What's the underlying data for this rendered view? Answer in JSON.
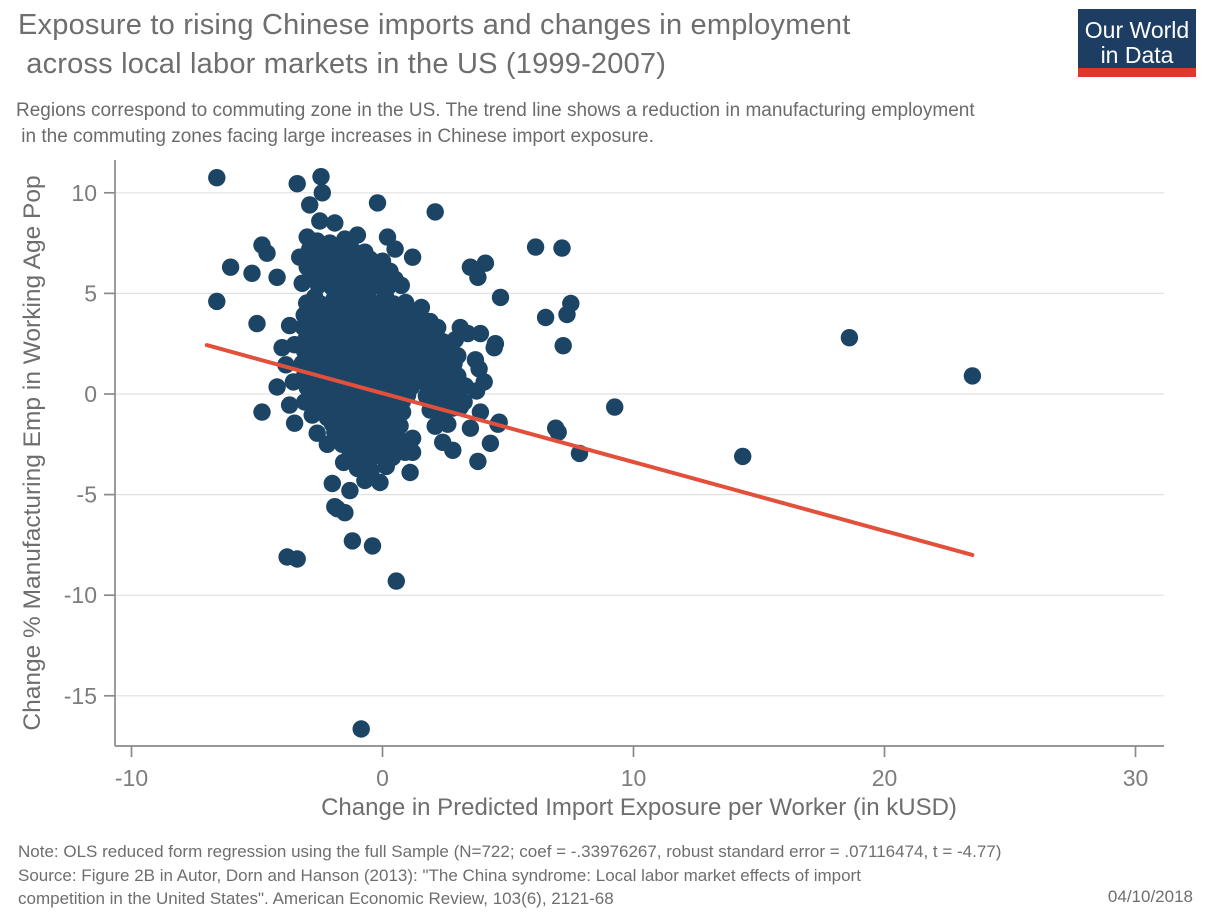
{
  "header": {
    "title_line1": "Exposure to rising Chinese imports and changes in employment",
    "title_line2": " across local labor markets in the US (1999-2007)",
    "subtitle_line1": "Regions correspond to commuting zone in the US. The trend line shows a reduction in manufacturing employment",
    "subtitle_line2": " in the commuting zones facing large increases in Chinese import exposure.",
    "logo": {
      "line1": "Our World",
      "line2": "in Data",
      "bg_color": "#1d3d63",
      "stripe_color": "#e0362b"
    }
  },
  "chart_data": {
    "type": "scatter",
    "title": "Exposure to rising Chinese imports and changes in employment across local labor markets in the US (1999-2007)",
    "xlabel": "Change in Predicted Import Exposure per Worker (in kUSD)",
    "ylabel": "Change % Manufacturing Emp in Working Age Pop",
    "xlim": [
      -10.7,
      31.2
    ],
    "ylim": [
      -17.5,
      11.6
    ],
    "x_ticks": [
      -10,
      0,
      10,
      20,
      30
    ],
    "y_ticks": [
      10,
      5,
      0,
      -5,
      -10,
      -15
    ],
    "grid": "horizontal gridlines at y ticks",
    "point_color": "#1c4465",
    "grid_color": "#e1e1e1",
    "axis_color": "#8a8a8a",
    "tick_label_color": "#7d7d7d",
    "axis_title_color": "#6e6e6e",
    "trend": {
      "color": "#e2503c",
      "slope": -0.33976267,
      "intercept": 0.05,
      "x1": -7.0,
      "y1": 2.43,
      "x2": 23.5,
      "y2": -8.0
    },
    "points": [
      [
        -2.7,
        4.82
      ],
      [
        -1.92,
        4.75
      ],
      [
        -1.2,
        4.9
      ],
      [
        -0.58,
        4.78
      ],
      [
        0.12,
        4.85
      ],
      [
        -3.02,
        4.52
      ],
      [
        -2.42,
        4.45
      ],
      [
        -1.7,
        4.55
      ],
      [
        -1.05,
        4.42
      ],
      [
        -0.33,
        4.5
      ],
      [
        0.44,
        4.48
      ],
      [
        0.92,
        4.55
      ],
      [
        -2.82,
        4.18
      ],
      [
        -2.2,
        4.25
      ],
      [
        -1.52,
        4.12
      ],
      [
        -0.85,
        4.22
      ],
      [
        -0.15,
        4.15
      ],
      [
        0.58,
        4.2
      ],
      [
        1.1,
        4.1
      ],
      [
        -3.12,
        3.92
      ],
      [
        -2.55,
        3.85
      ],
      [
        -1.95,
        3.95
      ],
      [
        -1.35,
        3.88
      ],
      [
        -0.7,
        3.92
      ],
      [
        -0.05,
        3.82
      ],
      [
        0.35,
        3.95
      ],
      [
        0.82,
        3.88
      ],
      [
        -2.9,
        3.62
      ],
      [
        -2.35,
        3.55
      ],
      [
        -1.75,
        3.65
      ],
      [
        -1.15,
        3.58
      ],
      [
        -0.5,
        3.62
      ],
      [
        0.1,
        3.55
      ],
      [
        0.65,
        3.6
      ],
      [
        1.05,
        3.52
      ],
      [
        -3.15,
        3.32
      ],
      [
        -2.6,
        3.25
      ],
      [
        -2.05,
        3.35
      ],
      [
        -1.5,
        3.28
      ],
      [
        -0.9,
        3.32
      ],
      [
        -0.3,
        3.22
      ],
      [
        0.25,
        3.3
      ],
      [
        0.75,
        3.25
      ],
      [
        1.15,
        3.35
      ],
      [
        -2.75,
        3.02
      ],
      [
        -2.2,
        2.95
      ],
      [
        -1.65,
        3.05
      ],
      [
        -1.1,
        2.98
      ],
      [
        -0.55,
        3.02
      ],
      [
        0.0,
        2.92
      ],
      [
        0.5,
        3.0
      ],
      [
        0.95,
        2.95
      ],
      [
        -3.05,
        2.72
      ],
      [
        -2.5,
        2.65
      ],
      [
        -1.9,
        2.75
      ],
      [
        -1.3,
        2.68
      ],
      [
        -0.75,
        2.72
      ],
      [
        -0.2,
        2.62
      ],
      [
        0.3,
        2.7
      ],
      [
        0.85,
        2.65
      ],
      [
        1.22,
        2.75
      ],
      [
        -2.85,
        2.42
      ],
      [
        -2.3,
        2.35
      ],
      [
        -1.7,
        2.45
      ],
      [
        -1.2,
        2.38
      ],
      [
        -0.65,
        2.42
      ],
      [
        -0.1,
        2.32
      ],
      [
        0.4,
        2.4
      ],
      [
        0.9,
        2.35
      ],
      [
        -3.1,
        2.12
      ],
      [
        -2.6,
        2.05
      ],
      [
        -2.0,
        2.15
      ],
      [
        -1.45,
        2.08
      ],
      [
        -0.9,
        2.12
      ],
      [
        -0.4,
        2.02
      ],
      [
        0.15,
        2.1
      ],
      [
        0.7,
        2.05
      ],
      [
        1.15,
        2.15
      ],
      [
        -2.9,
        1.82
      ],
      [
        -2.4,
        1.75
      ],
      [
        -1.8,
        1.85
      ],
      [
        -1.25,
        1.78
      ],
      [
        -0.7,
        1.82
      ],
      [
        -0.15,
        1.72
      ],
      [
        0.35,
        1.8
      ],
      [
        0.85,
        1.75
      ],
      [
        -3.2,
        1.52
      ],
      [
        -2.65,
        1.45
      ],
      [
        -2.1,
        1.55
      ],
      [
        -1.55,
        1.48
      ],
      [
        -1.0,
        1.52
      ],
      [
        -0.45,
        1.42
      ],
      [
        0.05,
        1.5
      ],
      [
        0.55,
        1.45
      ],
      [
        1.05,
        1.55
      ],
      [
        -2.95,
        1.22
      ],
      [
        -2.45,
        1.15
      ],
      [
        -1.85,
        1.25
      ],
      [
        -1.3,
        1.18
      ],
      [
        -0.8,
        1.22
      ],
      [
        -0.25,
        1.12
      ],
      [
        0.25,
        1.2
      ],
      [
        0.75,
        1.15
      ],
      [
        1.2,
        1.25
      ],
      [
        -3.1,
        0.92
      ],
      [
        -2.55,
        0.85
      ],
      [
        -2.0,
        0.95
      ],
      [
        -1.5,
        0.88
      ],
      [
        -0.95,
        0.92
      ],
      [
        -0.4,
        0.82
      ],
      [
        0.1,
        0.9
      ],
      [
        0.6,
        0.85
      ],
      [
        1.1,
        0.95
      ],
      [
        -2.8,
        0.62
      ],
      [
        -2.3,
        0.55
      ],
      [
        -1.75,
        0.65
      ],
      [
        -1.2,
        0.58
      ],
      [
        -0.65,
        0.62
      ],
      [
        -0.1,
        0.52
      ],
      [
        0.4,
        0.6
      ],
      [
        0.9,
        0.55
      ],
      [
        -3.0,
        0.32
      ],
      [
        -2.5,
        0.25
      ],
      [
        -1.95,
        0.35
      ],
      [
        -1.4,
        0.28
      ],
      [
        -0.85,
        0.32
      ],
      [
        -0.3,
        0.22
      ],
      [
        0.2,
        0.3
      ],
      [
        0.7,
        0.25
      ],
      [
        1.15,
        0.35
      ],
      [
        -2.7,
        0.02
      ],
      [
        -2.15,
        -0.05
      ],
      [
        -1.6,
        0.05
      ],
      [
        -1.05,
        -0.02
      ],
      [
        -0.5,
        0.02
      ],
      [
        0.05,
        -0.08
      ],
      [
        0.55,
        0.0
      ],
      [
        1.0,
        -0.05
      ],
      [
        -2.9,
        -0.28
      ],
      [
        -2.35,
        -0.35
      ],
      [
        -1.8,
        -0.25
      ],
      [
        -1.25,
        -0.32
      ],
      [
        -0.7,
        -0.28
      ],
      [
        -0.15,
        -0.38
      ],
      [
        0.35,
        -0.3
      ],
      [
        0.8,
        -0.35
      ],
      [
        -2.6,
        -0.58
      ],
      [
        -2.05,
        -0.65
      ],
      [
        -1.5,
        -0.55
      ],
      [
        -0.95,
        -0.62
      ],
      [
        -0.4,
        -0.58
      ],
      [
        0.15,
        -0.68
      ],
      [
        0.65,
        -0.6
      ],
      [
        -2.4,
        -0.88
      ],
      [
        -1.85,
        -0.95
      ],
      [
        -1.3,
        -0.85
      ],
      [
        -0.75,
        -0.92
      ],
      [
        -0.2,
        -0.88
      ],
      [
        0.3,
        -0.98
      ],
      [
        0.8,
        -0.9
      ],
      [
        -2.2,
        -1.18
      ],
      [
        -1.65,
        -1.25
      ],
      [
        -1.1,
        -1.15
      ],
      [
        -0.55,
        -1.22
      ],
      [
        0.0,
        -1.18
      ],
      [
        0.5,
        -1.28
      ],
      [
        -2.0,
        -1.48
      ],
      [
        -1.45,
        -1.55
      ],
      [
        -0.9,
        -1.45
      ],
      [
        -0.35,
        -1.52
      ],
      [
        0.2,
        -1.48
      ],
      [
        0.7,
        -1.58
      ],
      [
        -2.6,
        7.6
      ],
      [
        -2.1,
        7.5
      ],
      [
        -1.6,
        7.4
      ],
      [
        -2.9,
        7.2
      ],
      [
        -2.3,
        7.1
      ],
      [
        -1.8,
        7.0
      ],
      [
        -1.2,
        7.15
      ],
      [
        -0.7,
        7.05
      ],
      [
        -3.3,
        6.8
      ],
      [
        -2.7,
        6.7
      ],
      [
        -2.15,
        6.6
      ],
      [
        -1.6,
        6.55
      ],
      [
        -1.05,
        6.6
      ],
      [
        -0.5,
        6.7
      ],
      [
        0.0,
        6.6
      ],
      [
        -3.0,
        6.3
      ],
      [
        -2.5,
        6.2
      ],
      [
        -1.95,
        6.1
      ],
      [
        -1.4,
        6.05
      ],
      [
        -0.85,
        6.1
      ],
      [
        -0.3,
        6.2
      ],
      [
        0.3,
        6.1
      ],
      [
        -2.8,
        5.8
      ],
      [
        -2.25,
        5.7
      ],
      [
        -1.7,
        5.65
      ],
      [
        -1.15,
        5.7
      ],
      [
        -0.6,
        5.75
      ],
      [
        -0.05,
        5.65
      ],
      [
        0.5,
        5.7
      ],
      [
        -2.55,
        5.4
      ],
      [
        -2.0,
        5.3
      ],
      [
        -1.45,
        5.25
      ],
      [
        -0.9,
        5.3
      ],
      [
        -0.35,
        5.35
      ],
      [
        0.2,
        5.3
      ],
      [
        0.75,
        5.4
      ],
      [
        -3.2,
        5.5
      ],
      [
        1.5,
        3.9
      ],
      [
        1.9,
        3.6
      ],
      [
        1.45,
        3.2
      ],
      [
        1.8,
        2.9
      ],
      [
        2.2,
        3.3
      ],
      [
        1.55,
        2.5
      ],
      [
        1.95,
        2.2
      ],
      [
        2.4,
        2.6
      ],
      [
        1.5,
        1.9
      ],
      [
        1.85,
        1.55
      ],
      [
        2.3,
        1.8
      ],
      [
        2.7,
        2.1
      ],
      [
        1.6,
        1.2
      ],
      [
        2.0,
        0.9
      ],
      [
        2.45,
        1.25
      ],
      [
        2.85,
        1.5
      ],
      [
        1.7,
        0.55
      ],
      [
        2.1,
        0.3
      ],
      [
        2.55,
        0.6
      ],
      [
        3.0,
        0.9
      ],
      [
        1.75,
        -0.1
      ],
      [
        2.2,
        -0.35
      ],
      [
        2.65,
        0.0
      ],
      [
        3.1,
        0.25
      ],
      [
        1.9,
        -0.8
      ],
      [
        2.35,
        -1.05
      ],
      [
        2.8,
        -0.7
      ],
      [
        3.25,
        -0.4
      ],
      [
        1.55,
        4.3
      ],
      [
        2.6,
        -1.5
      ],
      [
        -1.9,
        -1.9
      ],
      [
        -1.35,
        -2.1
      ],
      [
        -0.8,
        -1.95
      ],
      [
        -0.25,
        -2.05
      ],
      [
        0.3,
        -1.85
      ],
      [
        -1.6,
        -2.5
      ],
      [
        -1.05,
        -2.6
      ],
      [
        -0.5,
        -2.45
      ],
      [
        0.05,
        -2.55
      ],
      [
        0.6,
        -2.4
      ],
      [
        -1.3,
        -3.1
      ],
      [
        -0.75,
        -3.2
      ],
      [
        -0.2,
        -3.05
      ],
      [
        0.4,
        -3.15
      ],
      [
        -1.0,
        -3.7
      ],
      [
        -0.45,
        -3.8
      ],
      [
        0.15,
        -3.6
      ],
      [
        -0.7,
        -4.3
      ],
      [
        -0.1,
        -4.4
      ],
      [
        -1.55,
        -3.4
      ],
      [
        0.9,
        -2.9
      ],
      [
        1.2,
        -2.2
      ],
      [
        -3.7,
        3.4
      ],
      [
        -4.0,
        2.3
      ],
      [
        -3.5,
        2.45
      ],
      [
        -3.85,
        1.45
      ],
      [
        -3.55,
        0.6
      ],
      [
        -6.6,
        10.75
      ],
      [
        -3.4,
        10.45
      ],
      [
        -2.45,
        10.8
      ],
      [
        -2.4,
        10.0
      ],
      [
        -2.9,
        9.4
      ],
      [
        -0.2,
        9.5
      ],
      [
        2.1,
        9.05
      ],
      [
        -2.5,
        8.6
      ],
      [
        -1.9,
        8.5
      ],
      [
        -3.0,
        7.8
      ],
      [
        -1.0,
        7.9
      ],
      [
        -1.5,
        7.7
      ],
      [
        0.2,
        7.8
      ],
      [
        0.5,
        7.2
      ],
      [
        1.2,
        6.8
      ],
      [
        -4.8,
        7.4
      ],
      [
        -4.6,
        7.0
      ],
      [
        -6.05,
        6.3
      ],
      [
        -5.2,
        6.0
      ],
      [
        -4.2,
        5.8
      ],
      [
        -6.6,
        4.6
      ],
      [
        -5.0,
        3.5
      ],
      [
        6.1,
        7.3
      ],
      [
        7.15,
        7.25
      ],
      [
        3.5,
        6.3
      ],
      [
        4.1,
        6.5
      ],
      [
        3.8,
        5.8
      ],
      [
        4.7,
        4.8
      ],
      [
        7.5,
        4.5
      ],
      [
        7.35,
        3.95
      ],
      [
        6.5,
        3.8
      ],
      [
        7.2,
        2.4
      ],
      [
        4.45,
        2.3
      ],
      [
        3.1,
        3.3
      ],
      [
        3.4,
        3.0
      ],
      [
        3.9,
        3.0
      ],
      [
        2.9,
        2.7
      ],
      [
        4.5,
        2.5
      ],
      [
        2.4,
        1.8
      ],
      [
        3.0,
        1.9
      ],
      [
        3.7,
        1.7
      ],
      [
        3.85,
        1.25
      ],
      [
        4.05,
        0.6
      ],
      [
        3.3,
        0.4
      ],
      [
        3.75,
        0.15
      ],
      [
        2.3,
        0.2
      ],
      [
        18.6,
        2.8
      ],
      [
        23.5,
        0.9
      ],
      [
        14.35,
        -3.1
      ],
      [
        9.25,
        -0.65
      ],
      [
        3.1,
        -0.65
      ],
      [
        3.9,
        -0.9
      ],
      [
        4.65,
        -1.4
      ],
      [
        7.0,
        -1.9
      ],
      [
        7.85,
        -2.95
      ],
      [
        2.1,
        -1.6
      ],
      [
        2.4,
        -2.4
      ],
      [
        2.8,
        -2.8
      ],
      [
        3.5,
        -1.7
      ],
      [
        4.3,
        -2.45
      ],
      [
        4.6,
        -1.5
      ],
      [
        6.9,
        -1.7
      ],
      [
        3.8,
        -3.35
      ],
      [
        -4.8,
        -0.9
      ],
      [
        -4.2,
        0.35
      ],
      [
        -3.7,
        -0.55
      ],
      [
        -3.5,
        -1.45
      ],
      [
        -3.1,
        -0.4
      ],
      [
        -2.8,
        -1.05
      ],
      [
        -2.6,
        -1.95
      ],
      [
        -2.2,
        -2.5
      ],
      [
        -2.0,
        -4.45
      ],
      [
        -1.8,
        -5.7
      ],
      [
        -1.3,
        -4.8
      ],
      [
        -1.2,
        -7.3
      ],
      [
        -0.4,
        -7.55
      ],
      [
        -1.1,
        -3.1
      ],
      [
        -0.7,
        -3.7
      ],
      [
        0.0,
        -2.7
      ],
      [
        0.7,
        -2.3
      ],
      [
        1.1,
        -3.9
      ],
      [
        1.2,
        -2.9
      ],
      [
        -3.8,
        -8.1
      ],
      [
        -3.4,
        -8.2
      ],
      [
        0.55,
        -9.3
      ],
      [
        -0.85,
        -16.65
      ],
      [
        -1.9,
        -5.6
      ],
      [
        -1.5,
        -5.9
      ]
    ]
  },
  "footer": {
    "note": "Note: OLS reduced form regression using the full Sample (N=722; coef = -.33976267, robust standard error = .07116474, t = -4.77)",
    "source_line1": "Source: Figure 2B in Autor, Dorn and Hanson (2013): \"The China syndrome: Local labor market effects of import",
    "source_line2": "competition in the United States\". American Economic Review, 103(6), 2121-68",
    "date": "04/10/2018"
  }
}
